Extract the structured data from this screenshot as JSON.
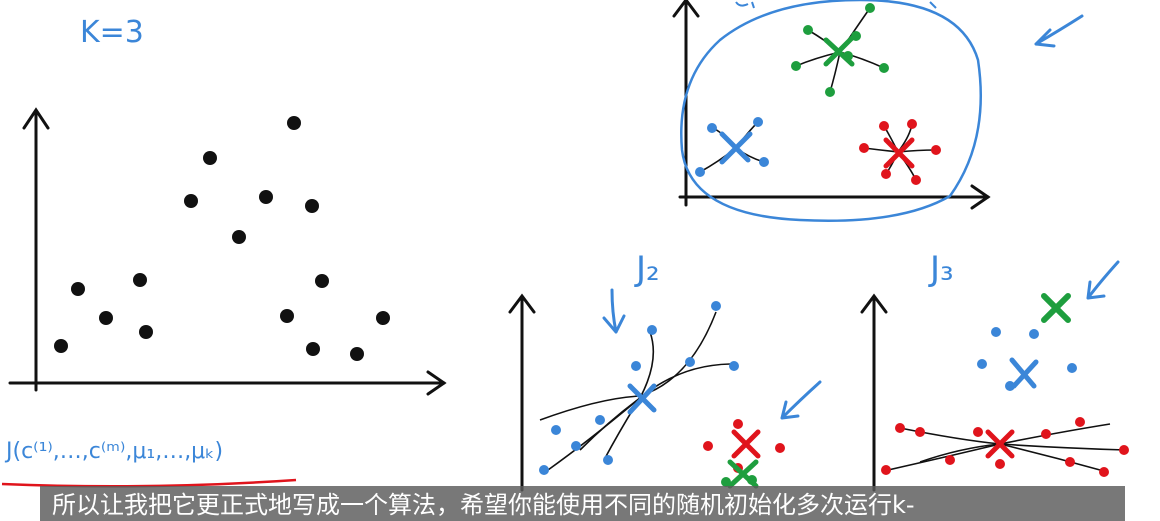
{
  "whiteboard": {
    "k_label": "K=3",
    "cost_label": "J(c⁽¹⁾,…,c⁽ᵐ⁾,μ₁,…,μₖ)",
    "j2_label": "J₂",
    "j3_label": "J₃"
  },
  "subtitle": "所以让我把它更正式地写成一个算法，希望你能使用不同的随机初始化多次运行k-",
  "colors": {
    "blue": "#3b86d8",
    "green": "#1e9e3e",
    "red": "#e0141c",
    "ink": "#111111",
    "underline": "#e0141c"
  },
  "icons": [
    "arrow-icon",
    "cross-icon"
  ]
}
